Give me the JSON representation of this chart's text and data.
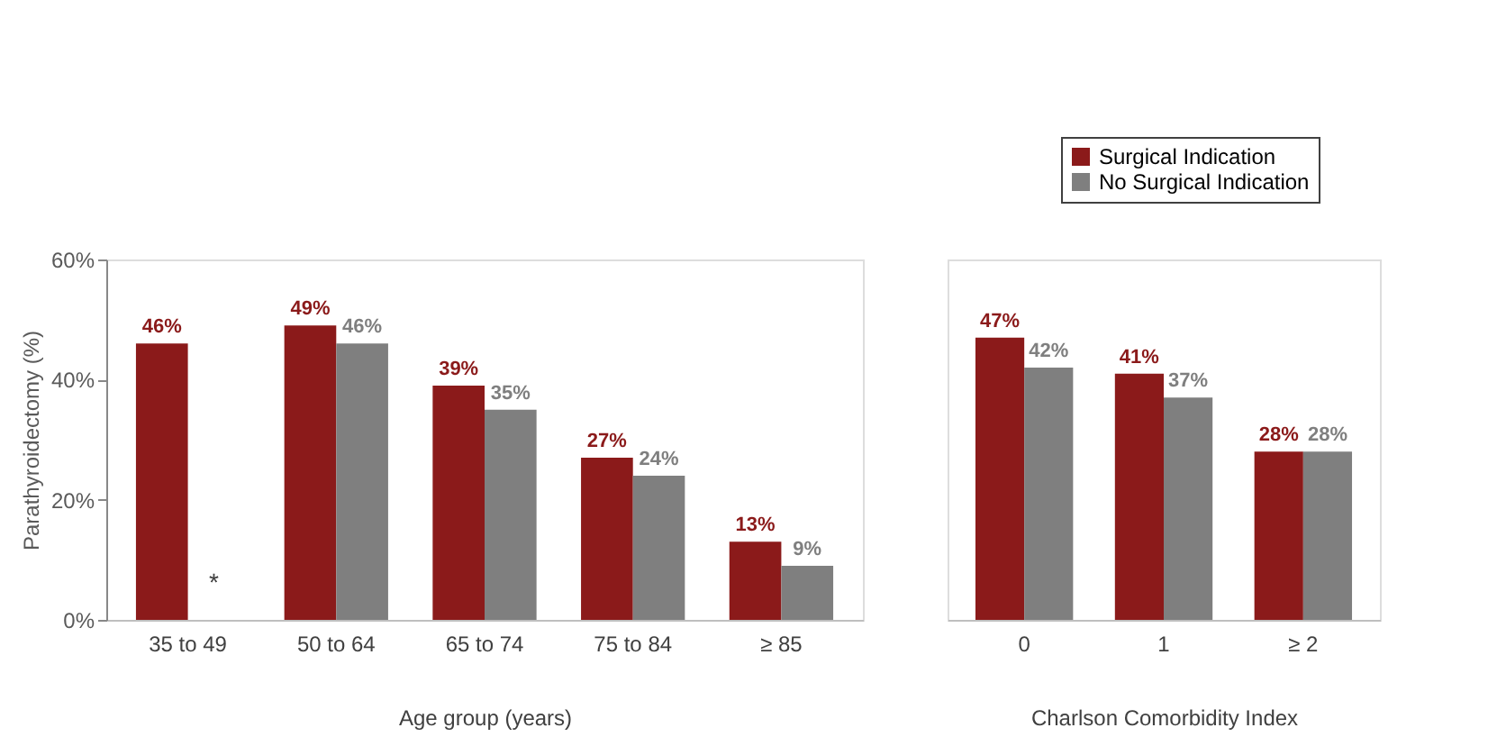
{
  "chart_data": [
    {
      "type": "bar",
      "xlabel": "Age group (years)",
      "ylabel": "Parathyroidectomy (%)",
      "categories": [
        "35 to 49",
        "50 to 64",
        "65 to 74",
        "75 to 84",
        "≥ 85"
      ],
      "series": [
        {
          "name": "Surgical Indication",
          "color": "#8b1a1a",
          "values": [
            46,
            49,
            39,
            27,
            13
          ]
        },
        {
          "name": "No Surgical Indication",
          "color": "#7f7f7f",
          "values": [
            null,
            46,
            35,
            24,
            9
          ]
        }
      ],
      "ylim": [
        0,
        60
      ],
      "yticks": [
        {
          "value": 0,
          "label": "0%"
        },
        {
          "value": 20,
          "label": "20%"
        },
        {
          "value": 40,
          "label": "40%"
        },
        {
          "value": 60,
          "label": "60%"
        }
      ],
      "value_labels": [
        [
          "46%",
          "49%",
          "39%",
          "27%",
          "13%"
        ],
        [
          null,
          "46%",
          "35%",
          "24%",
          "9%"
        ]
      ],
      "annotations": [
        {
          "text": "*",
          "x": "35 to 49"
        }
      ],
      "grid": false,
      "legend": "top right"
    },
    {
      "type": "bar",
      "xlabel": "Charlson Comorbidity Index",
      "categories": [
        "0",
        "1",
        "≥ 2"
      ],
      "series": [
        {
          "name": "Surgical Indication",
          "color": "#8b1a1a",
          "values": [
            47,
            41,
            28
          ]
        },
        {
          "name": "No Surgical Indication",
          "color": "#7f7f7f",
          "values": [
            42,
            37,
            28
          ]
        }
      ],
      "ylim": [
        0,
        60
      ],
      "value_labels": [
        [
          "47%",
          "41%",
          "28%"
        ],
        [
          "42%",
          "37%",
          "28%"
        ]
      ],
      "tick_labels": "x",
      "grid": false,
      "legend": "top right"
    }
  ]
}
